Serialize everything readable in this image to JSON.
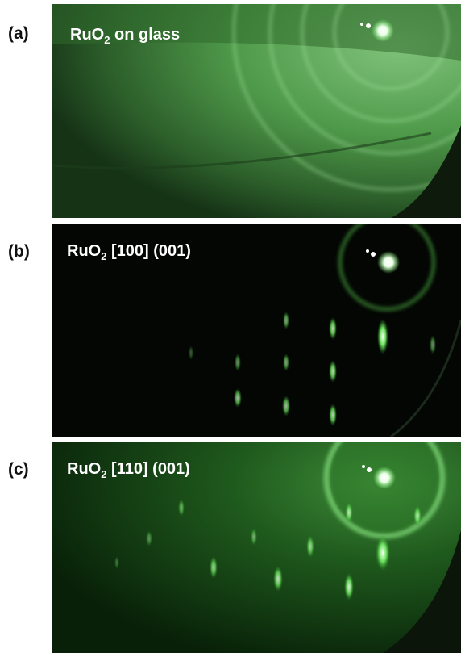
{
  "panels": [
    {
      "label": "(a)",
      "caption": {
        "prefix": "RuO",
        "subscript": "2",
        "suffix": " on glass"
      }
    },
    {
      "label": "(b)",
      "caption": {
        "prefix": "RuO",
        "subscript": "2",
        "suffix": " [100] (001)"
      }
    },
    {
      "label": "(c)",
      "caption": {
        "prefix": "RuO",
        "subscript": "2",
        "suffix": " [110] (001)"
      }
    }
  ]
}
